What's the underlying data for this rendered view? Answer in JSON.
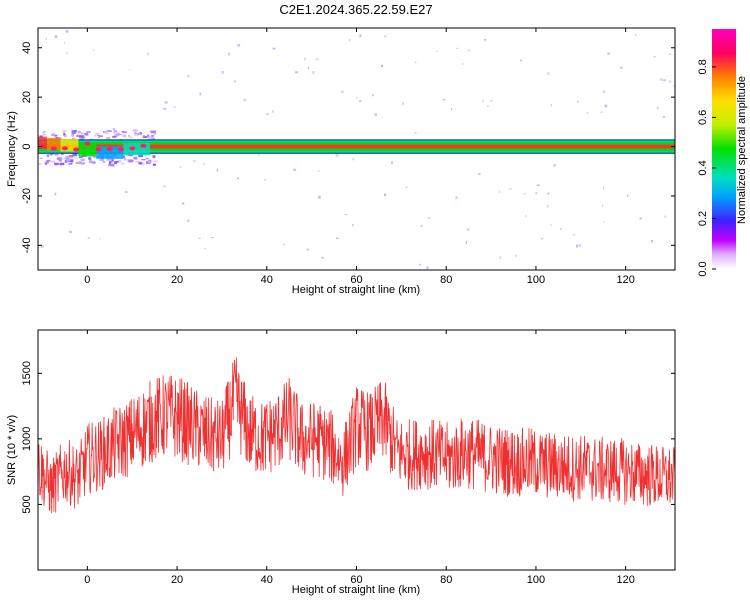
{
  "title": "C2E1.2024.365.22.59.E27",
  "colors": {
    "snr_line": "#f03030",
    "band": "#006040",
    "colorbar": [
      "#ffffff",
      "#c000ff",
      "#4020ff",
      "#00a0ff",
      "#00e0c0",
      "#00e000",
      "#c0f000",
      "#ffe000",
      "#ff8000",
      "#ff0060",
      "#ff00c0"
    ]
  },
  "chart_data": [
    {
      "type": "heatmap",
      "title": "C2E1.2024.365.22.59.E27",
      "xlabel": "Height of straight line (km)",
      "ylabel": "Frequency (Hz)",
      "xlim": [
        -11,
        131
      ],
      "ylim": [
        -50,
        48
      ],
      "xticks": [
        "0",
        "20",
        "40",
        "60",
        "80",
        "100",
        "120"
      ],
      "xtick_values": [
        0,
        20,
        40,
        60,
        80,
        100,
        120
      ],
      "yticks": [
        "-40",
        "-20",
        "0",
        "20",
        "40"
      ],
      "ytick_values": [
        -40,
        -20,
        0,
        20,
        40
      ],
      "band": {
        "x_start": -11,
        "x_end": 131,
        "freq_low": -1.5,
        "freq_high": 1.5,
        "center": 0
      },
      "colorbar": {
        "label": "Normalized spectral amplitude",
        "range": [
          0,
          0.95
        ],
        "ticks": [
          "0.0",
          "0.2",
          "0.4",
          "0.6",
          "0.8"
        ],
        "tick_values": [
          0,
          0.2,
          0.4,
          0.6,
          0.8
        ]
      }
    },
    {
      "type": "line",
      "xlabel": "Height of straight line (km)",
      "ylabel": "SNR (10 * v/v)",
      "xlim": [
        -11,
        131
      ],
      "ylim": [
        0,
        1830
      ],
      "xticks": [
        "0",
        "20",
        "40",
        "60",
        "80",
        "100",
        "120"
      ],
      "xtick_values": [
        0,
        20,
        40,
        60,
        80,
        100,
        120
      ],
      "yticks": [
        "500",
        "1000",
        "1500"
      ],
      "ytick_values": [
        500,
        1000,
        1500
      ],
      "x": [
        -11,
        -8,
        -5,
        -2,
        0,
        3,
        6,
        9,
        12,
        15,
        18,
        21,
        24,
        27,
        30,
        33,
        36,
        39,
        42,
        45,
        48,
        51,
        54,
        57,
        60,
        63,
        66,
        69,
        72,
        75,
        78,
        81,
        84,
        87,
        90,
        93,
        96,
        99,
        102,
        105,
        108,
        111,
        114,
        117,
        120,
        123,
        126,
        129,
        131
      ],
      "y": [
        800,
        620,
        760,
        700,
        850,
        880,
        950,
        1000,
        1080,
        1150,
        1180,
        1150,
        1080,
        1020,
        1000,
        1300,
        1050,
        1000,
        1050,
        1150,
        980,
        1000,
        950,
        820,
        1100,
        1050,
        1150,
        900,
        880,
        900,
        870,
        850,
        900,
        880,
        850,
        830,
        820,
        820,
        800,
        790,
        780,
        780,
        760,
        760,
        750,
        730,
        720,
        700,
        700
      ]
    }
  ]
}
